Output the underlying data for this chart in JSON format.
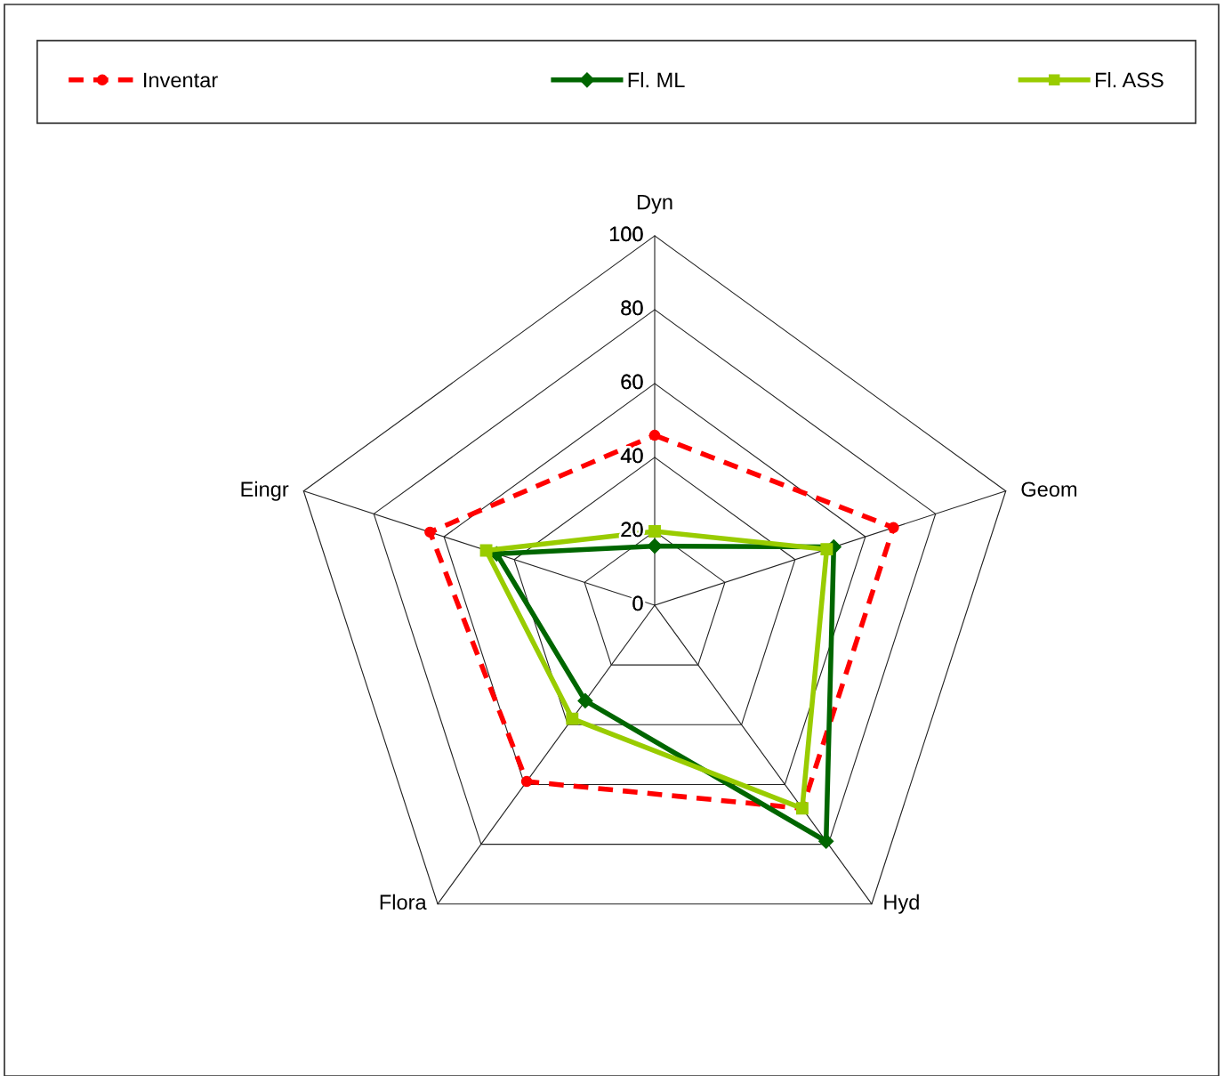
{
  "chart_data": {
    "type": "radar",
    "categories": [
      "Dyn",
      "Geom",
      "Hyd",
      "Flora",
      "Eingr"
    ],
    "ylim": [
      0,
      100
    ],
    "yticks": [
      0,
      20,
      40,
      60,
      80,
      100
    ],
    "legend": "top",
    "series": [
      {
        "name": "Inventar",
        "color": "#ff0000",
        "marker": "circle",
        "line_style": "dashed",
        "values": [
          46,
          68,
          68,
          59,
          64
        ]
      },
      {
        "name": "Fl. ML",
        "color": "#006600",
        "marker": "diamond",
        "line_style": "solid",
        "values": [
          16,
          51,
          79,
          32,
          45
        ]
      },
      {
        "name": "Fl. ASS",
        "color": "#99cc00",
        "marker": "square",
        "line_style": "solid",
        "values": [
          20,
          49,
          68,
          38,
          48
        ]
      }
    ]
  }
}
